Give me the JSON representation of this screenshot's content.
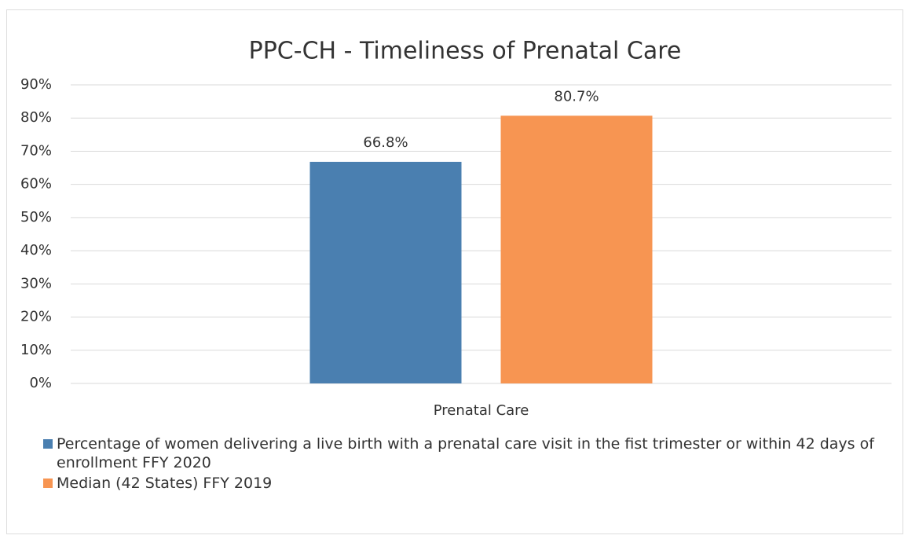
{
  "chart_data": {
    "type": "bar",
    "title": "PPC-CH - Timeliness of Prenatal Care",
    "categories": [
      "Prenatal Care"
    ],
    "series": [
      {
        "name": "Percentage of women delivering a live birth with a prenatal care visit in the fist trimester or within 42 days of enrollment FFY 2020",
        "color": "#4a7fb0",
        "values": [
          66.8
        ],
        "value_labels": [
          "66.8%"
        ]
      },
      {
        "name": "Median (42 States) FFY 2019",
        "color": "#f79552",
        "values": [
          80.7
        ],
        "value_labels": [
          "80.7%"
        ]
      }
    ],
    "ylim": [
      0,
      90
    ],
    "yticks": [
      {
        "value": 0,
        "label": "0%"
      },
      {
        "value": 10,
        "label": "10%"
      },
      {
        "value": 20,
        "label": "20%"
      },
      {
        "value": 30,
        "label": "30%"
      },
      {
        "value": 40,
        "label": "40%"
      },
      {
        "value": 50,
        "label": "50%"
      },
      {
        "value": 60,
        "label": "60%"
      },
      {
        "value": 70,
        "label": "70%"
      },
      {
        "value": 80,
        "label": "80%"
      },
      {
        "value": 90,
        "label": "90%"
      }
    ],
    "grid": true,
    "legend": "bottom"
  }
}
